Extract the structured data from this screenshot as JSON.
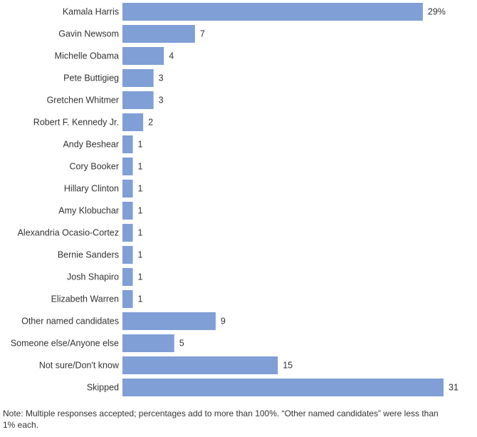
{
  "chart_data": {
    "type": "bar",
    "orientation": "horizontal",
    "categories": [
      "Kamala Harris",
      "Gavin Newsom",
      "Michelle Obama",
      "Pete Buttigieg",
      "Gretchen Whitmer",
      "Robert F. Kennedy Jr.",
      "Andy Beshear",
      "Cory Booker",
      "Hillary Clinton",
      "Amy Klobuchar",
      "Alexandria Ocasio-Cortez",
      "Bernie Sanders",
      "Josh Shapiro",
      "Elizabeth Warren",
      "Other named candidates",
      "Someone else/Anyone else",
      "Not sure/Don't know",
      "Skipped"
    ],
    "values": [
      29,
      7,
      4,
      3,
      3,
      2,
      1,
      1,
      1,
      1,
      1,
      1,
      1,
      1,
      9,
      5,
      15,
      31
    ],
    "value_labels": [
      "29%",
      "7",
      "4",
      "3",
      "3",
      "2",
      "1",
      "1",
      "1",
      "1",
      "1",
      "1",
      "1",
      "1",
      "9",
      "5",
      "15",
      "31"
    ],
    "bar_color": "#7f9fd6",
    "xlim": [
      0,
      31
    ],
    "grid": false,
    "legend": "none"
  },
  "note": "Note: Multiple responses accepted; percentages add to more than 100%. “Other named candidates” were less than 1% each."
}
